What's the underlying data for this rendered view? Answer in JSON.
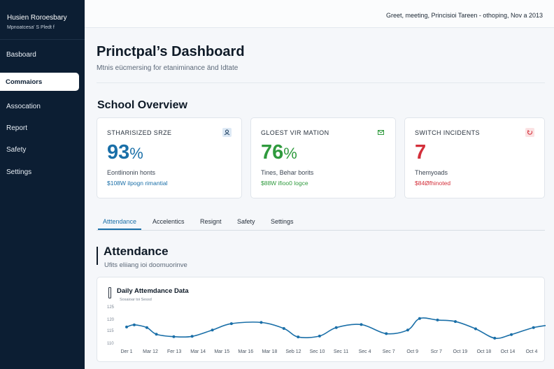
{
  "sidebar": {
    "brand_name": "Husien Roroesbary",
    "brand_sub": "Mpnoatcesa' S Pledt f",
    "items": [
      {
        "label": "Basboard"
      },
      {
        "label": "Commaiors"
      },
      {
        "label": "Assocation"
      },
      {
        "label": "Report"
      },
      {
        "label": "Safety"
      },
      {
        "label": "Settings"
      }
    ],
    "active_index": 1
  },
  "topbar": {
    "greeting": "Greet, meeting, Princisioi Tareen - othoping, Nov a 2013"
  },
  "header": {
    "title": "Princtpal’s Dashboard",
    "subtitle": "Mtnis eücmersing for etaniminance änd Idtate"
  },
  "overview": {
    "title": "School Overview",
    "cards": [
      {
        "label": "STHARISIZED SRZE",
        "value": "93",
        "unit": "%",
        "description": "Eontlinonin honts",
        "note": "$108W ilpogn rimantial",
        "icon": "person-icon",
        "value_color": "#1a6fa8",
        "note_color": "#1a6fa8"
      },
      {
        "label": "GLOEST VIR MATION",
        "value": "76",
        "unit": "%",
        "description": "Tines, Behar borits",
        "note": "$88W ifioo0 logce",
        "icon": "mail-icon",
        "value_color": "#2f9a3d",
        "note_color": "#2f9a3d"
      },
      {
        "label": "SWITCH INCIDENTS",
        "value": "7",
        "unit": "",
        "description": "Themyoads",
        "note": "$84Øfhinoted",
        "icon": "alert-icon",
        "value_color": "#d32f3a",
        "note_color": "#d32f3a"
      }
    ]
  },
  "tabs": [
    {
      "label": "Atttendance"
    },
    {
      "label": "Accelentics"
    },
    {
      "label": "Resignt"
    },
    {
      "label": "Safety"
    },
    {
      "label": "Settings"
    }
  ],
  "attendance": {
    "title": "Attendance",
    "subtitle": "Ufits eliiang ioi doomuorinve"
  },
  "chart_data": {
    "type": "line",
    "title": "Daily Attemdance Data",
    "subtitle": "Sosaioar toi Sessd",
    "y_ticks": [
      "125",
      "120",
      "115",
      "110"
    ],
    "x": [
      "Der 1",
      "Mar 12",
      "Fer 13",
      "Mar 14",
      "Mar 15",
      "Mar 16",
      "Mar 18",
      "Seb 12",
      "Sec 10",
      "Sec 11",
      "Sec 4",
      "Sec 7",
      "Oct 9",
      "Scr 7",
      "Oct 19",
      "Oct 18",
      "Oct 14",
      "Oct 4"
    ],
    "series": [
      {
        "color": "#1a6fa8",
        "points": [
          [
            0,
            119.8
          ],
          [
            0.32,
            120.5
          ],
          [
            0.85,
            119.6
          ],
          [
            1.25,
            117.4
          ],
          [
            1.98,
            116.6
          ],
          [
            2.75,
            116.7
          ],
          [
            3.6,
            118.8
          ],
          [
            4.4,
            120.9
          ],
          [
            5.65,
            121.3
          ],
          [
            6.6,
            119.3
          ],
          [
            7.2,
            116.5
          ],
          [
            8.1,
            116.8
          ],
          [
            8.8,
            119.6
          ],
          [
            9.85,
            120.6
          ],
          [
            10.9,
            117.6
          ],
          [
            11.8,
            118.8
          ],
          [
            12.3,
            122.6
          ],
          [
            13.05,
            122.1
          ],
          [
            13.8,
            121.6
          ],
          [
            14.65,
            119.2
          ],
          [
            15.45,
            116.1
          ],
          [
            16.15,
            117.3
          ],
          [
            17.08,
            119.6
          ],
          [
            17.8,
            120.5
          ]
        ]
      }
    ],
    "ylim": [
      114,
      126
    ],
    "grid": false,
    "legend": "none"
  }
}
